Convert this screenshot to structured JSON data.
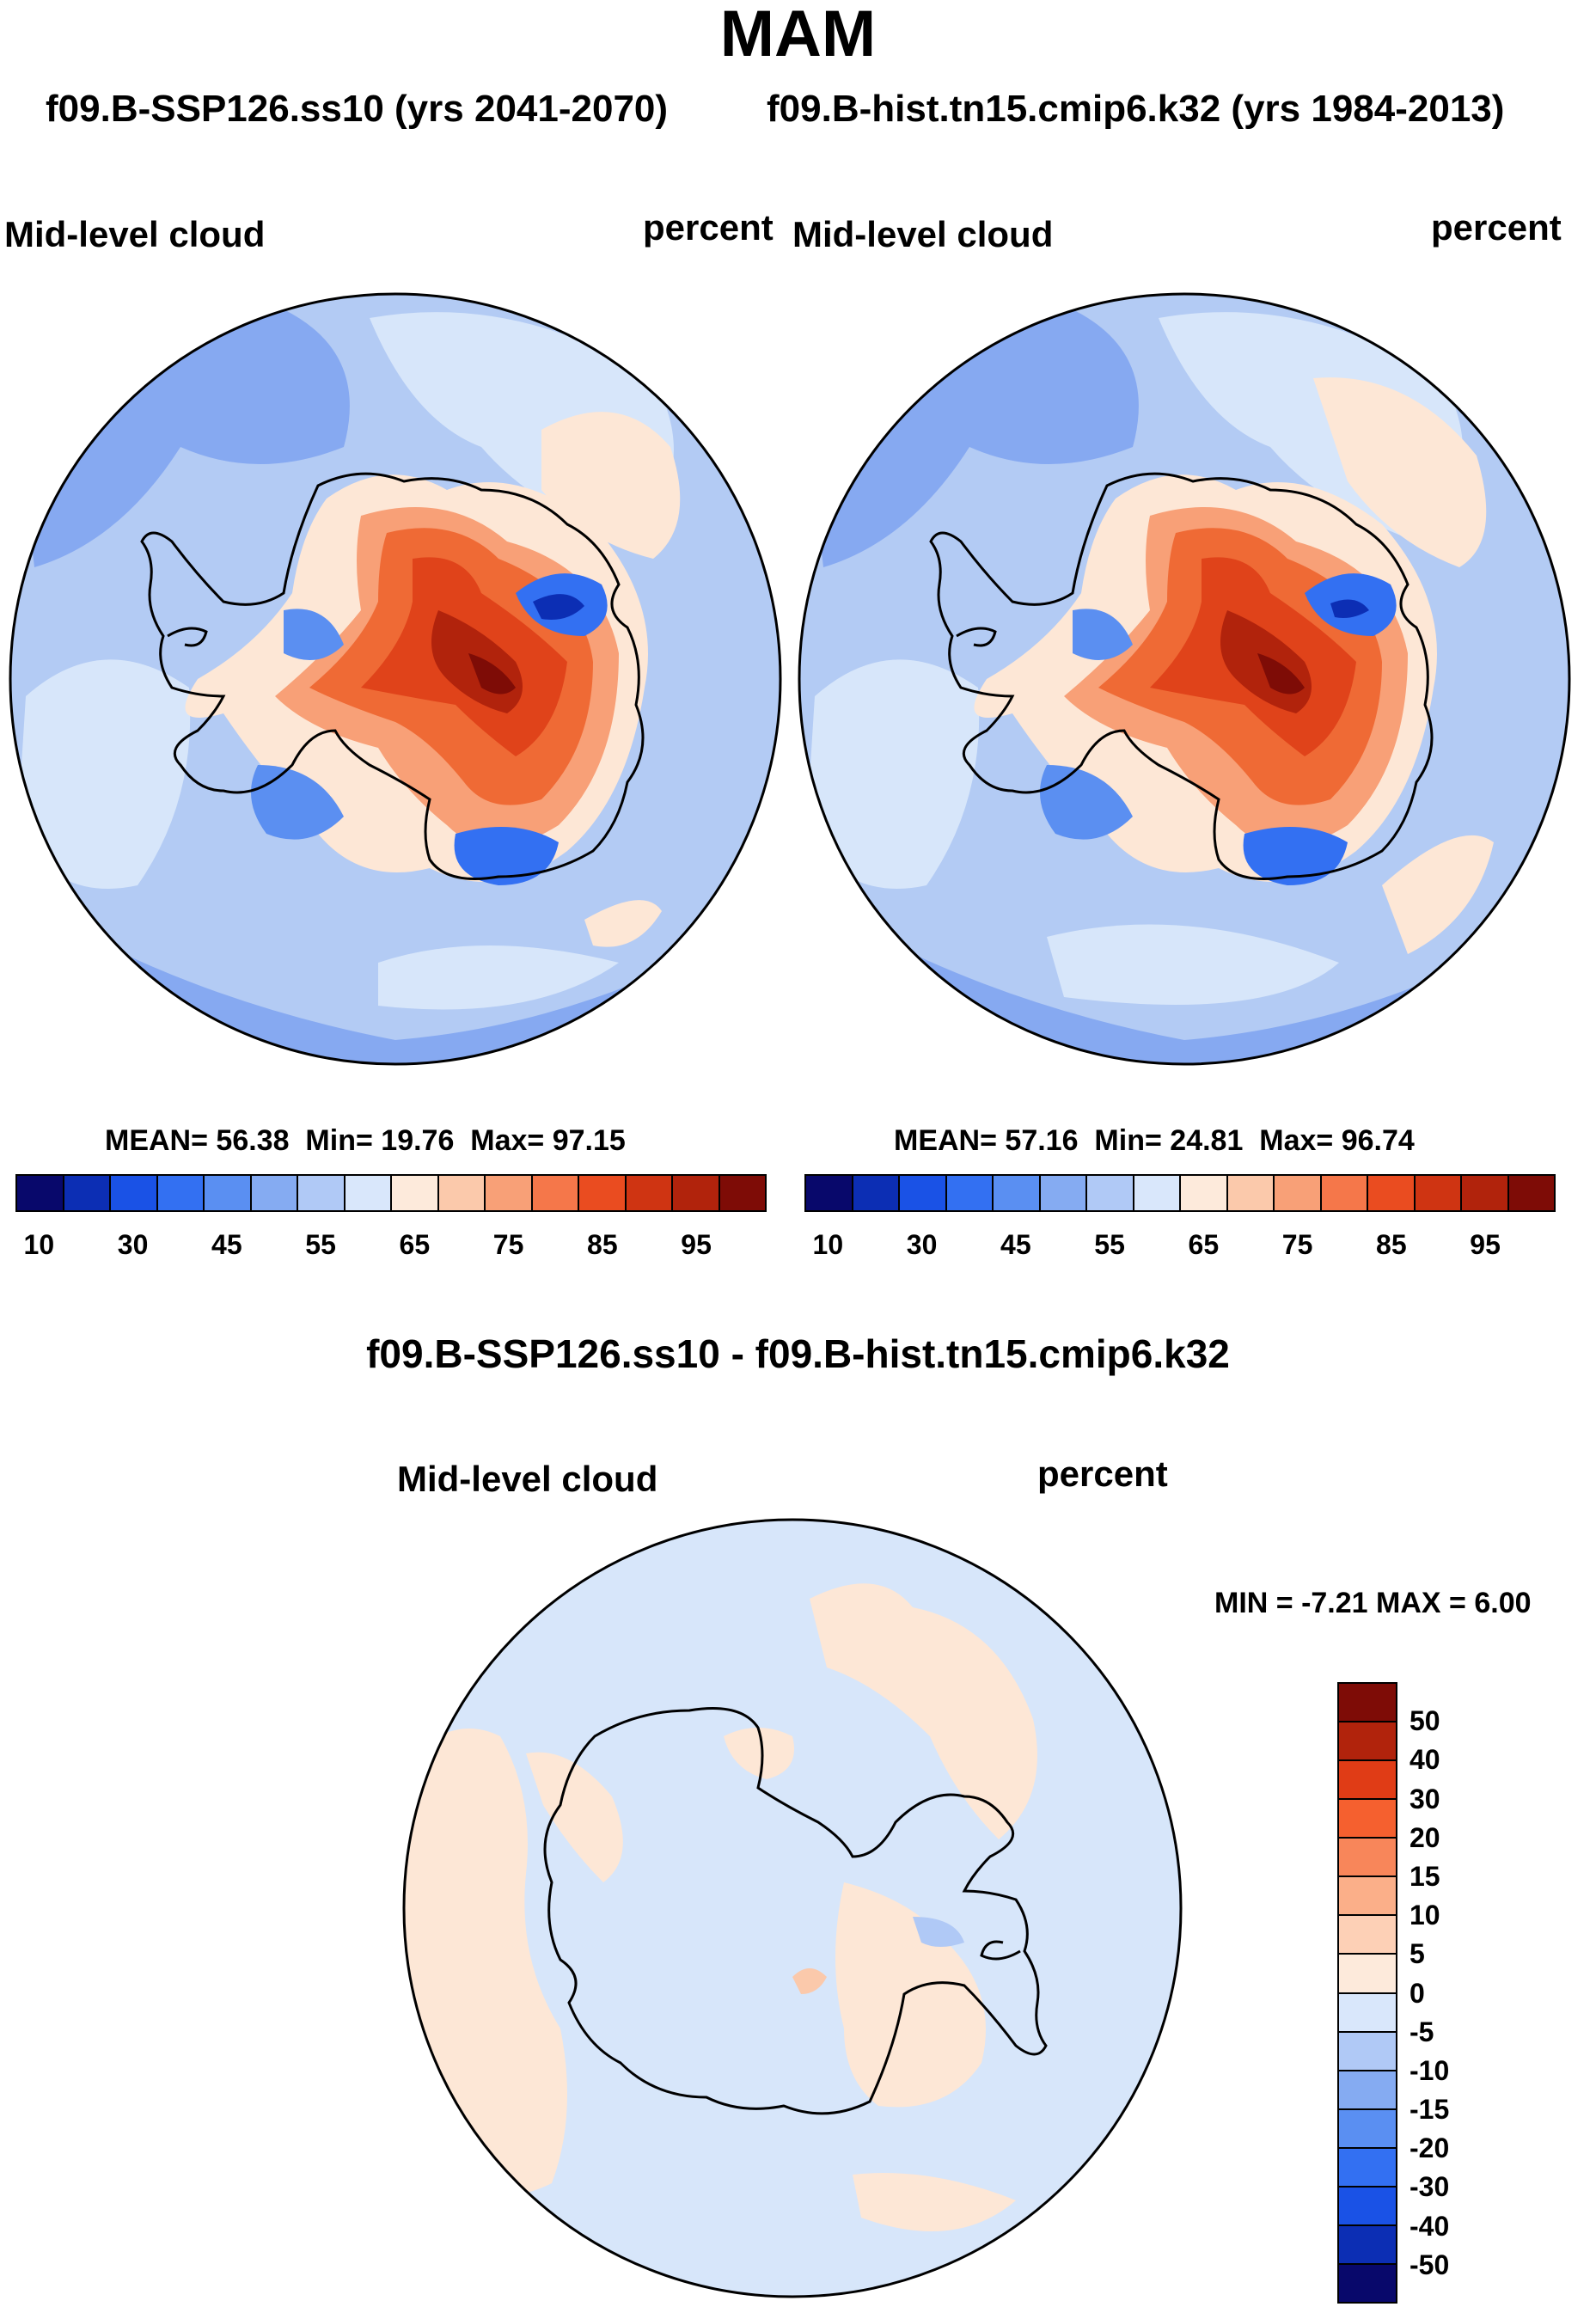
{
  "title": "MAM",
  "experiments": {
    "test": "f09.B-SSP126.ss10 (yrs 2041-2070)",
    "control": "f09.B-hist.tn15.cmip6.k32 (yrs 1984-2013)"
  },
  "panels": {
    "test": {
      "variable": "Mid-level cloud",
      "units": "percent",
      "stats": {
        "mean_label": "MEAN=",
        "mean": "56.38",
        "min_label": "Min=",
        "min": "19.76",
        "max_label": "Max=",
        "max": "97.15"
      }
    },
    "control": {
      "variable": "Mid-level cloud",
      "units": "percent",
      "stats": {
        "mean_label": "MEAN=",
        "mean": "57.16",
        "min_label": "Min=",
        "min": "24.81",
        "max_label": "Max=",
        "max": "96.74"
      }
    },
    "diff": {
      "title": "f09.B-SSP126.ss10 - f09.B-hist.tn15.cmip6.k32",
      "variable": "Mid-level cloud",
      "units": "percent",
      "stats": {
        "min_label": "MIN =",
        "min": "-7.21",
        "max_label": "MAX =",
        "max": "6.00"
      }
    }
  },
  "colorbar_abs": {
    "colors": [
      "#08086b",
      "#0c2eb4",
      "#1a52e6",
      "#3370f2",
      "#5a8ff2",
      "#85abf2",
      "#b0c9f6",
      "#d9e7fb",
      "#fdeadb",
      "#fbc9ab",
      "#f8a077",
      "#f5774a",
      "#ea4c20",
      "#cf3412",
      "#b1230c",
      "#7e0c06"
    ],
    "ticks": [
      "10",
      "30",
      "45",
      "55",
      "65",
      "75",
      "85",
      "95"
    ]
  },
  "colorbar_diff": {
    "colors": [
      "#7e0c06",
      "#b1230c",
      "#e03c16",
      "#f5602f",
      "#f8865a",
      "#fbaf89",
      "#fdd0b6",
      "#fdeadb",
      "#d9e7fb",
      "#b0c9f6",
      "#85abf2",
      "#5a8ff2",
      "#3370f2",
      "#1a52e6",
      "#0c2eb4",
      "#08086b"
    ],
    "ticks": [
      "50",
      "40",
      "30",
      "20",
      "15",
      "10",
      "5",
      "0",
      "-5",
      "-10",
      "-15",
      "-20",
      "-30",
      "-40",
      "-50"
    ]
  },
  "colors": {
    "ocean_low": "#b3cbf4",
    "ocean_lighter": "#d7e6fa",
    "ocean_mid": "#86a9f1",
    "ocean_dark": "#5b8ff1",
    "warm_light": "#fde7d6",
    "red_1": "#f8a077",
    "red_2": "#ef6a35",
    "red_3": "#e0431a",
    "red_4": "#b1230c",
    "red_5": "#7e0c06",
    "coast": "#000000"
  }
}
